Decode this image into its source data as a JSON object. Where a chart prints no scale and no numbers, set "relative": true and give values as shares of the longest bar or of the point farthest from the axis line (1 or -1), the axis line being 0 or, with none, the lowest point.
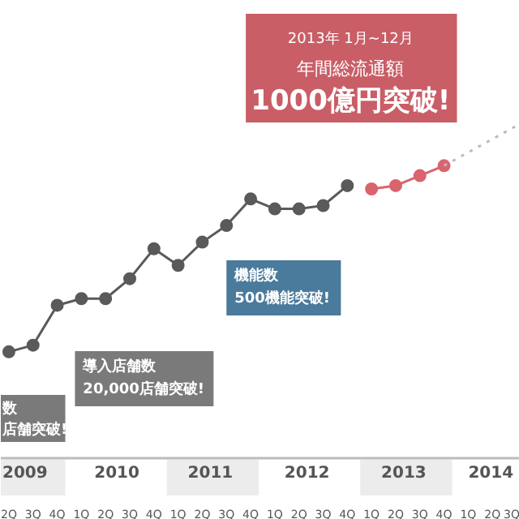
{
  "chart_data": {
    "type": "line",
    "relative": true,
    "marker": "circle",
    "categories": [
      "2Q",
      "3Q",
      "4Q",
      "1Q",
      "2Q",
      "3Q",
      "4Q",
      "1Q",
      "2Q",
      "3Q",
      "4Q",
      "1Q",
      "2Q",
      "3Q",
      "4Q",
      "1Q",
      "2Q",
      "3Q",
      "4Q",
      "1Q",
      "2Q",
      "3Q"
    ],
    "series": [
      {
        "color": "#5a5a5a",
        "values": [
          0.32,
          0.34,
          0.46,
          0.48,
          0.48,
          0.54,
          0.63,
          0.58,
          0.65,
          0.7,
          0.78,
          0.75,
          0.75,
          0.76,
          0.82,
          null,
          null,
          null,
          null,
          null,
          null,
          null
        ]
      },
      {
        "color": "#d9646e",
        "values": [
          null,
          null,
          null,
          null,
          null,
          null,
          null,
          null,
          null,
          null,
          null,
          null,
          null,
          null,
          null,
          0.81,
          0.82,
          0.85,
          0.88,
          null,
          null,
          null
        ]
      },
      {
        "color": "#bbbbbb",
        "line_style": "dotted",
        "marker": "none",
        "values": [
          null,
          null,
          null,
          null,
          null,
          null,
          null,
          null,
          null,
          null,
          null,
          null,
          null,
          null,
          null,
          null,
          null,
          null,
          0.88,
          0.92,
          0.96,
          1.0
        ]
      }
    ],
    "annotations": [
      "2009",
      "2010",
      "2011",
      "2012",
      "2013",
      "2014",
      "2013年 1月~12月",
      "年間総流通額",
      "1000億円突破!",
      "機能数",
      "500機能突破!",
      "導入店舗数",
      "20,000店舗突破!",
      "数",
      "店舗突破!"
    ]
  }
}
